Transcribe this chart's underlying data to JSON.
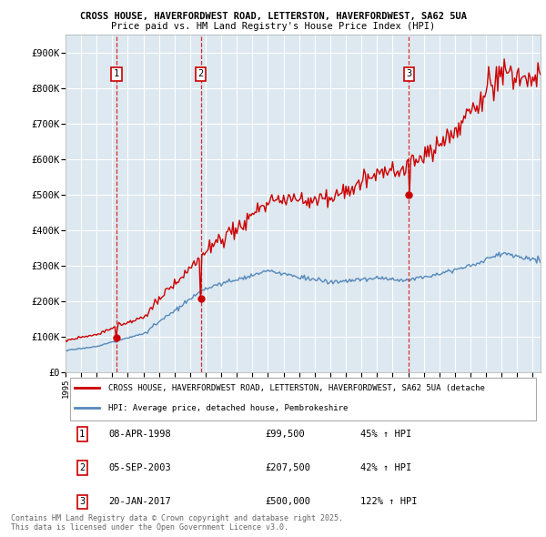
{
  "title_line1": "CROSS HOUSE, HAVERFORDWEST ROAD, LETTERSTON, HAVERFORDWEST, SA62 5UA",
  "title_line2": "Price paid vs. HM Land Registry's House Price Index (HPI)",
  "background_color": "#ffffff",
  "plot_bg_color": "#dde8f0",
  "grid_color": "#ffffff",
  "sale_line_color": "#cc0000",
  "hpi_line_color": "#5588bb",
  "sale_label": "CROSS HOUSE, HAVERFORDWEST ROAD, LETTERSTON, HAVERFORDWEST, SA62 5UA (detache",
  "hpi_label": "HPI: Average price, detached house, Pembrokeshire",
  "purchases": [
    {
      "num": 1,
      "date": "08-APR-1998",
      "price": 99500,
      "hpi_pct": "45% ↑ HPI",
      "year": 1998.27
    },
    {
      "num": 2,
      "date": "05-SEP-2003",
      "price": 207500,
      "hpi_pct": "42% ↑ HPI",
      "year": 2003.68
    },
    {
      "num": 3,
      "date": "20-JAN-2017",
      "price": 500000,
      "hpi_pct": "122% ↑ HPI",
      "year": 2017.05
    }
  ],
  "footnote1": "Contains HM Land Registry data © Crown copyright and database right 2025.",
  "footnote2": "This data is licensed under the Open Government Licence v3.0.",
  "xmin": 1995,
  "xmax": 2025.5,
  "ymin": 0,
  "ymax": 950000,
  "yticks": [
    0,
    100000,
    200000,
    300000,
    400000,
    500000,
    600000,
    700000,
    800000,
    900000
  ],
  "ytick_labels": [
    "£0",
    "£100K",
    "£200K",
    "£300K",
    "£400K",
    "£500K",
    "£600K",
    "£700K",
    "£800K",
    "£900K"
  ]
}
